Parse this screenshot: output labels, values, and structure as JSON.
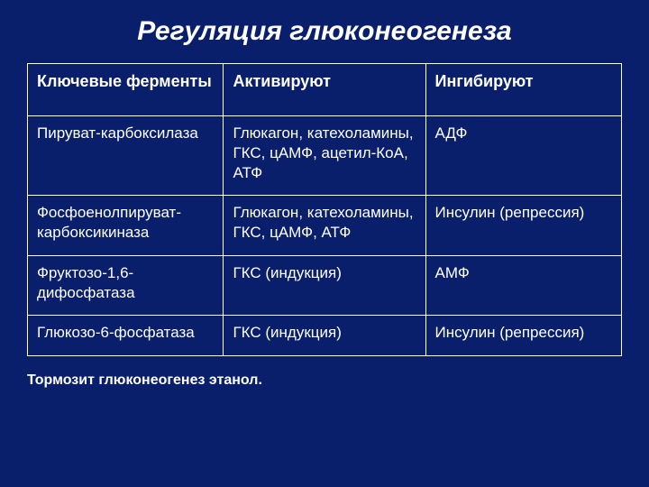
{
  "slide": {
    "title": "Регуляция глюконеогенеза",
    "footnote": "Тормозит глюконеогенез этанол.",
    "background_color": "#0a1f6b",
    "text_color": "#ffffff",
    "border_color": "#ffffff"
  },
  "table": {
    "type": "table",
    "column_widths_pct": [
      33,
      34,
      33
    ],
    "header_fontsize": 18,
    "cell_fontsize": 17,
    "columns": [
      "Ключевые ферменты",
      "Активируют",
      "Ингибируют"
    ],
    "rows": [
      [
        "Пируват-карбоксилаза",
        "Глюкагон, катехоламины, ГКС, цАМФ, ацетил-КоА, АТФ",
        "АДФ"
      ],
      [
        "Фосфоенолпируват-карбоксикиназа",
        "Глюкагон, катехоламины, ГКС, цАМФ,  АТФ",
        "Инсулин (репрессия)"
      ],
      [
        "Фруктозо-1,6-дифосфатаза",
        "ГКС (индукция)",
        "АМФ"
      ],
      [
        "Глюкозо-6-фосфатаза",
        "ГКС  (индукция)",
        "Инсулин (репрессия)"
      ]
    ]
  }
}
